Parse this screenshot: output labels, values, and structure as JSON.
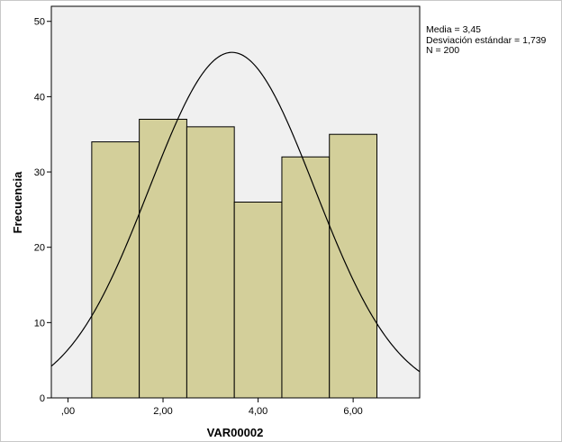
{
  "chart_data": {
    "type": "bar",
    "subtype": "histogram",
    "xlabel": "VAR00002",
    "ylabel": "Frecuencia",
    "x_tick_labels": [
      ",00",
      "2,00",
      "4,00",
      "6,00"
    ],
    "x_ticks": [
      0,
      2,
      4,
      6
    ],
    "xlim": [
      -0.35,
      7.4
    ],
    "y_ticks": [
      0,
      10,
      20,
      30,
      40,
      50
    ],
    "ylim": [
      0,
      52
    ],
    "bins": [
      {
        "from": 0.5,
        "to": 1.5,
        "count": 34
      },
      {
        "from": 1.5,
        "to": 2.5,
        "count": 37
      },
      {
        "from": 2.5,
        "to": 3.5,
        "count": 36
      },
      {
        "from": 3.5,
        "to": 4.5,
        "count": 26
      },
      {
        "from": 4.5,
        "to": 5.5,
        "count": 32
      },
      {
        "from": 5.5,
        "to": 6.5,
        "count": 35
      }
    ],
    "normal_curve": {
      "mean": 3.45,
      "sd": 1.739,
      "n": 200,
      "bin_width": 1
    },
    "bar_color": "#d3cf9a",
    "plot_background": "#f0f0f0",
    "grid": false,
    "stats_labels": [
      "Media = 3,45",
      "Desviación estándar = 1,739",
      "N = 200"
    ]
  }
}
